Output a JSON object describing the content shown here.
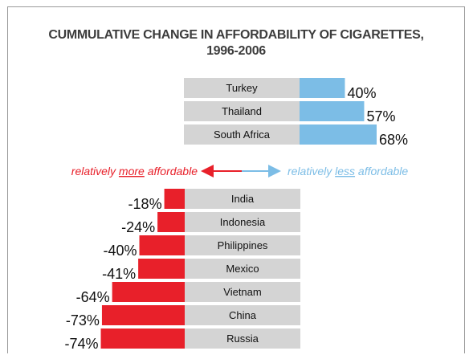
{
  "chart_data": {
    "type": "bar",
    "title_line1": "CUMMULATIVE CHANGE IN AFFORDABILITY OF CIGARETTES,",
    "title_line2": "1996-2006",
    "positive": {
      "categories": [
        "Turkey",
        "Thailand",
        "South Africa"
      ],
      "values": [
        40,
        57,
        68
      ],
      "labels": [
        "40%",
        "57%",
        "68%"
      ],
      "color": "#7cbde6"
    },
    "negative": {
      "categories": [
        "India",
        "Indonesia",
        "Philippines",
        "Mexico",
        "Vietnam",
        "China",
        "Russia"
      ],
      "values": [
        -18,
        -24,
        -40,
        -41,
        -64,
        -73,
        -74
      ],
      "labels": [
        "-18%",
        "-24%",
        "-40%",
        "-41%",
        "-64%",
        "-73%",
        "-74%"
      ],
      "color": "#e8202a"
    },
    "label_box_color": "#d4d4d4",
    "legend": {
      "left_prefix": "relatively ",
      "left_emph": "more",
      "left_suffix": " affordable",
      "left_color": "#e8202a",
      "right_prefix": "relatively ",
      "right_emph": "less",
      "right_suffix": " affordable",
      "right_color": "#7cbde6"
    }
  }
}
